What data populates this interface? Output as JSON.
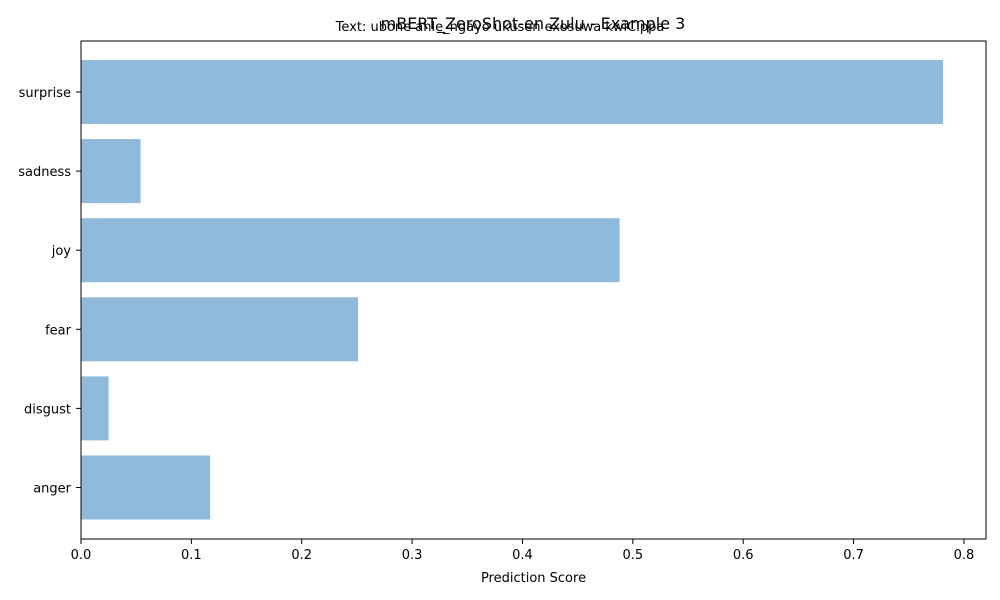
{
  "chart_data": {
    "type": "bar",
    "orientation": "horizontal",
    "title": "mBERT_ZeroShot-en Zulu - Example 3",
    "subtitle": "Text: ubone ahle_ngayo ukusen exosuwa kwiCippa",
    "xlabel": "Prediction Score",
    "ylabel": "",
    "categories": [
      "anger",
      "disgust",
      "fear",
      "joy",
      "sadness",
      "surprise"
    ],
    "values": [
      0.117,
      0.025,
      0.251,
      0.488,
      0.054,
      0.781
    ],
    "xlim": [
      0,
      0.82
    ],
    "xticks": [
      0.0,
      0.1,
      0.2,
      0.3,
      0.4,
      0.5,
      0.6,
      0.7,
      0.8
    ],
    "xtick_labels": [
      "0.0",
      "0.1",
      "0.2",
      "0.3",
      "0.4",
      "0.5",
      "0.6",
      "0.7",
      "0.8"
    ],
    "grid": false,
    "legend": "none",
    "bar_color": "#8fbadb"
  }
}
